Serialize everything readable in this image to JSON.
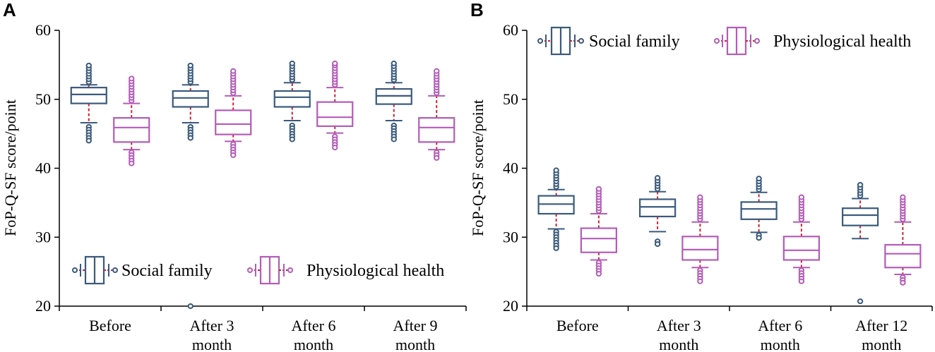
{
  "colors": {
    "social": "#3a5a7c",
    "physio": "#b35cb8",
    "whisker": "#d21f2f",
    "axis": "#000000"
  },
  "chart_data": [
    {
      "type": "box",
      "panel_label": "A",
      "ylabel": "FoP-Q-SF score/point",
      "ylim": [
        20,
        60
      ],
      "yticks": [
        20,
        30,
        40,
        50,
        60
      ],
      "categories": [
        {
          "line1": "Before",
          "line2": ""
        },
        {
          "line1": "After  3",
          "line2": "month"
        },
        {
          "line1": "After  6",
          "line2": "month"
        },
        {
          "line1": "After  9",
          "line2": "month"
        }
      ],
      "legend": [
        "Social family",
        "Physiological health"
      ],
      "legend_position": "bottom",
      "series": [
        {
          "name": "Social family",
          "boxes": [
            {
              "q1": 49.4,
              "median": 50.7,
              "q3": 51.7,
              "lo": 46.6,
              "hi": 52.1,
              "out_hi": [
                52.5,
                52.9,
                53.3,
                53.7,
                54.1,
                54.5,
                54.9
              ],
              "out_lo": [
                46.0,
                45.6,
                45.2,
                44.8,
                44.4,
                44.0
              ]
            },
            {
              "q1": 48.9,
              "median": 50.2,
              "q3": 51.2,
              "lo": 46.6,
              "hi": 52.1,
              "out_hi": [
                52.5,
                52.9,
                53.3,
                53.7,
                54.1,
                54.5,
                54.9
              ],
              "out_lo": [
                46.0,
                45.6,
                45.2,
                44.8,
                44.4,
                20.0
              ]
            },
            {
              "q1": 48.9,
              "median": 50.3,
              "q3": 51.2,
              "lo": 46.9,
              "hi": 52.4,
              "out_hi": [
                52.8,
                53.2,
                53.6,
                54.0,
                54.4,
                54.8,
                55.2
              ],
              "out_lo": [
                46.2,
                45.8,
                45.4,
                45.0,
                44.6,
                44.2
              ]
            },
            {
              "q1": 49.3,
              "median": 50.5,
              "q3": 51.5,
              "lo": 46.9,
              "hi": 52.4,
              "out_hi": [
                52.8,
                53.2,
                53.6,
                54.0,
                54.4,
                54.8,
                55.2
              ],
              "out_lo": [
                46.2,
                45.8,
                45.4,
                45.0,
                44.6,
                44.2
              ]
            }
          ]
        },
        {
          "name": "Physiological health",
          "boxes": [
            {
              "q1": 43.8,
              "median": 45.9,
              "q3": 47.3,
              "lo": 42.7,
              "hi": 49.4,
              "out_hi": [
                49.8,
                50.2,
                50.6,
                51.0,
                51.4,
                51.8,
                52.2,
                52.6,
                53.0
              ],
              "out_lo": [
                42.3,
                41.9,
                41.5,
                41.1,
                40.7
              ]
            },
            {
              "q1": 44.9,
              "median": 46.4,
              "q3": 48.4,
              "lo": 43.9,
              "hi": 50.5,
              "out_hi": [
                50.9,
                51.3,
                51.7,
                52.1,
                52.5,
                52.9,
                53.3,
                53.7,
                54.1
              ],
              "out_lo": [
                43.5,
                43.1,
                42.7,
                42.3,
                41.9
              ]
            },
            {
              "q1": 46.1,
              "median": 47.4,
              "q3": 49.6,
              "lo": 45.1,
              "hi": 51.7,
              "out_hi": [
                52.1,
                52.5,
                52.9,
                53.3,
                53.7,
                54.1,
                54.5,
                54.9,
                55.2
              ],
              "out_lo": [
                44.6,
                44.2,
                43.8,
                43.4,
                43.0
              ]
            },
            {
              "q1": 43.8,
              "median": 45.9,
              "q3": 47.3,
              "lo": 42.7,
              "hi": 50.5,
              "out_hi": [
                50.9,
                51.3,
                51.7,
                52.1,
                52.5,
                52.9,
                53.3,
                53.7,
                54.1
              ],
              "out_lo": [
                42.3,
                41.9,
                41.5
              ]
            }
          ]
        }
      ]
    },
    {
      "type": "box",
      "panel_label": "B",
      "ylabel": "FoP-Q-SF score/point",
      "ylim": [
        20,
        60
      ],
      "yticks": [
        20,
        30,
        40,
        50,
        60
      ],
      "categories": [
        {
          "line1": "Before",
          "line2": ""
        },
        {
          "line1": "After  3",
          "line2": "month"
        },
        {
          "line1": "After  6",
          "line2": "month"
        },
        {
          "line1": "After  12",
          "line2": "month"
        }
      ],
      "legend": [
        "Social family",
        "Physiological health"
      ],
      "legend_position": "top",
      "series": [
        {
          "name": "Social family",
          "boxes": [
            {
              "q1": 33.4,
              "median": 34.8,
              "q3": 36.0,
              "lo": 31.2,
              "hi": 36.9,
              "out_hi": [
                37.3,
                37.7,
                38.1,
                38.5,
                38.9,
                39.3,
                39.7
              ],
              "out_lo": [
                30.8,
                30.4,
                30.0,
                29.6,
                29.2,
                28.8,
                28.4
              ]
            },
            {
              "q1": 33.0,
              "median": 34.4,
              "q3": 35.5,
              "lo": 30.8,
              "hi": 36.6,
              "out_hi": [
                37.0,
                37.4,
                37.8,
                38.2,
                38.6
              ],
              "out_lo": [
                29.4,
                29.0
              ]
            },
            {
              "q1": 32.6,
              "median": 34.1,
              "q3": 35.1,
              "lo": 30.7,
              "hi": 36.5,
              "out_hi": [
                36.9,
                37.3,
                37.7,
                38.1,
                38.5
              ],
              "out_lo": [
                30.3,
                29.9
              ]
            },
            {
              "q1": 31.7,
              "median": 33.2,
              "q3": 34.2,
              "lo": 29.8,
              "hi": 35.6,
              "out_hi": [
                36.0,
                36.4,
                36.8,
                37.2,
                37.6
              ],
              "out_lo": [
                20.7
              ]
            }
          ]
        },
        {
          "name": "Physiological health",
          "boxes": [
            {
              "q1": 27.8,
              "median": 29.8,
              "q3": 31.3,
              "lo": 26.7,
              "hi": 33.4,
              "out_hi": [
                33.8,
                34.2,
                34.6,
                35.0,
                35.4,
                35.8,
                36.2,
                36.6,
                37.0
              ],
              "out_lo": [
                26.3,
                25.9,
                25.5,
                25.1,
                24.7
              ]
            },
            {
              "q1": 26.7,
              "median": 28.2,
              "q3": 30.1,
              "lo": 25.6,
              "hi": 32.2,
              "out_hi": [
                32.6,
                33.0,
                33.4,
                33.8,
                34.2,
                34.6,
                35.0,
                35.4,
                35.8
              ],
              "out_lo": [
                25.2,
                24.8,
                24.4,
                24.0,
                23.6
              ]
            },
            {
              "q1": 26.7,
              "median": 28.1,
              "q3": 30.1,
              "lo": 25.6,
              "hi": 32.2,
              "out_hi": [
                32.6,
                33.0,
                33.4,
                33.8,
                34.2,
                34.6,
                35.0,
                35.4,
                35.8
              ],
              "out_lo": [
                25.2,
                24.8,
                24.4,
                24.0,
                23.6
              ]
            },
            {
              "q1": 25.6,
              "median": 27.6,
              "q3": 28.9,
              "lo": 24.6,
              "hi": 32.2,
              "out_hi": [
                32.6,
                33.0,
                33.4,
                33.8,
                34.2,
                34.6,
                35.0,
                35.4,
                35.8
              ],
              "out_lo": [
                24.2,
                23.8,
                23.4
              ]
            }
          ]
        }
      ]
    }
  ]
}
